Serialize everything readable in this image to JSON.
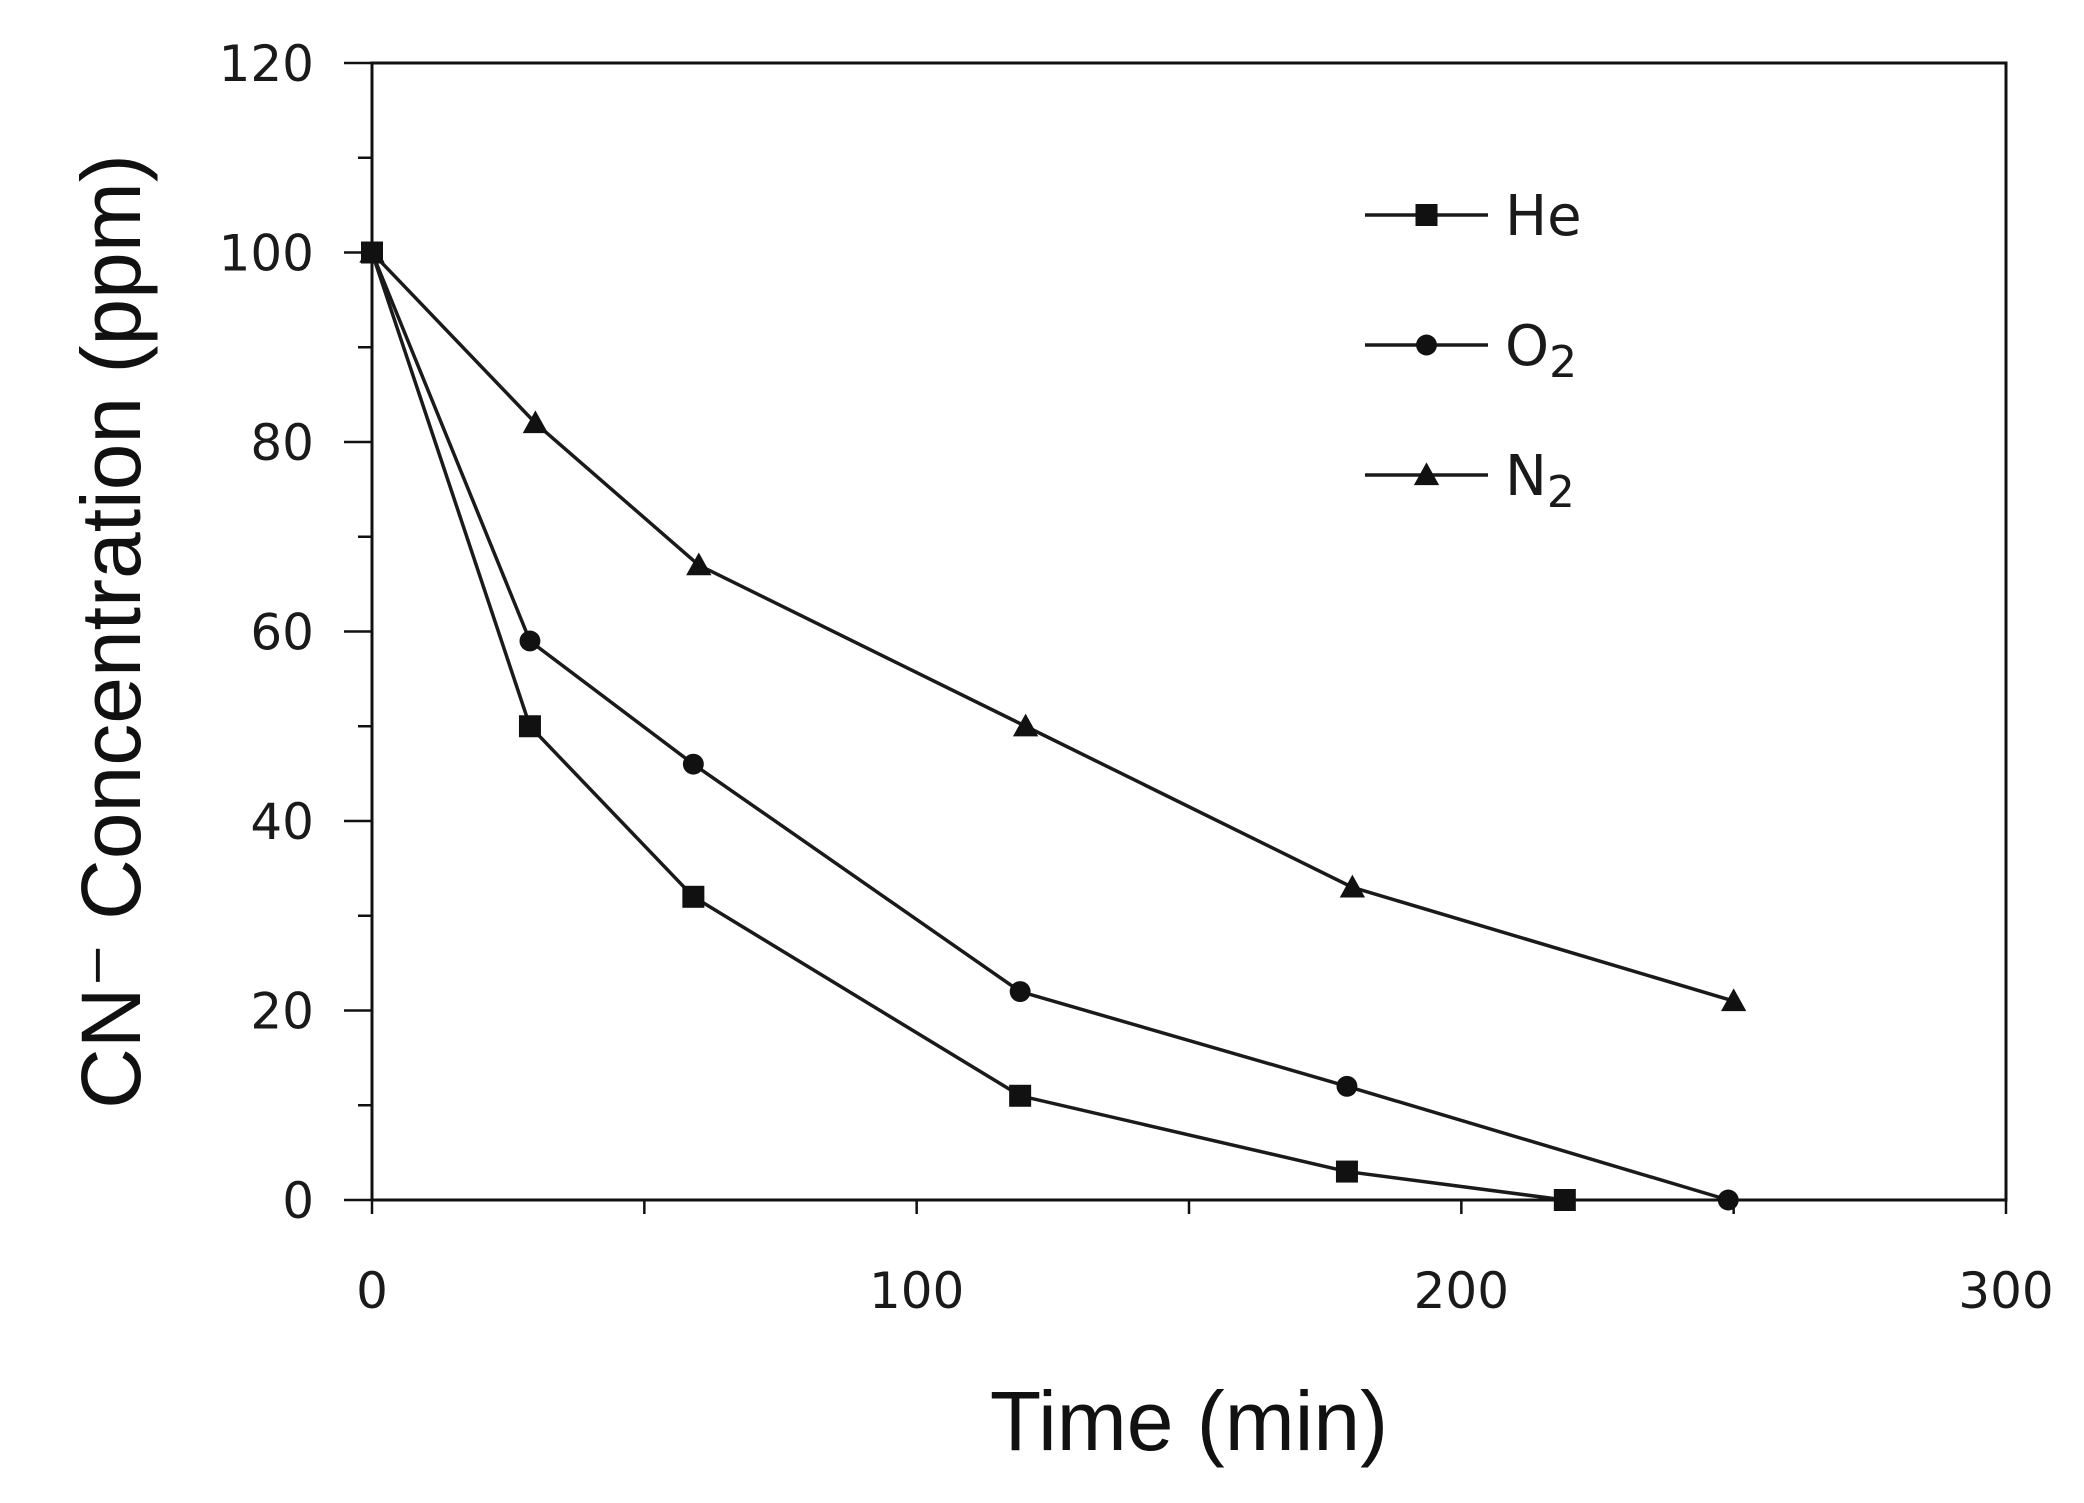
{
  "chart_data": {
    "type": "line",
    "xlabel": "Time (min)",
    "ylabel": "CN⁻ Concentration (ppm)",
    "xlim": [
      0,
      300
    ],
    "ylim": [
      0,
      120
    ],
    "x_ticks": [
      0,
      100,
      200,
      300
    ],
    "x_minor_step": 50,
    "y_ticks": [
      0,
      20,
      40,
      60,
      80,
      100,
      120
    ],
    "y_minor_step": 10,
    "grid": false,
    "legend_position": "top-right",
    "series": [
      {
        "name": "He",
        "legend_main": "He",
        "legend_sub": "",
        "marker": "square",
        "x": [
          0,
          29,
          59,
          119,
          179,
          219
        ],
        "y": [
          100,
          50,
          32,
          11,
          3,
          0
        ]
      },
      {
        "name": "O2",
        "legend_main": "O",
        "legend_sub": "2",
        "marker": "circle",
        "x": [
          0,
          29,
          59,
          119,
          179,
          249
        ],
        "y": [
          100,
          59,
          46,
          22,
          12,
          0
        ]
      },
      {
        "name": "N2",
        "legend_main": "N",
        "legend_sub": "2",
        "marker": "triangle",
        "x": [
          0,
          30,
          60,
          120,
          180,
          250
        ],
        "y": [
          100,
          82,
          67,
          50,
          33,
          21
        ]
      }
    ]
  }
}
